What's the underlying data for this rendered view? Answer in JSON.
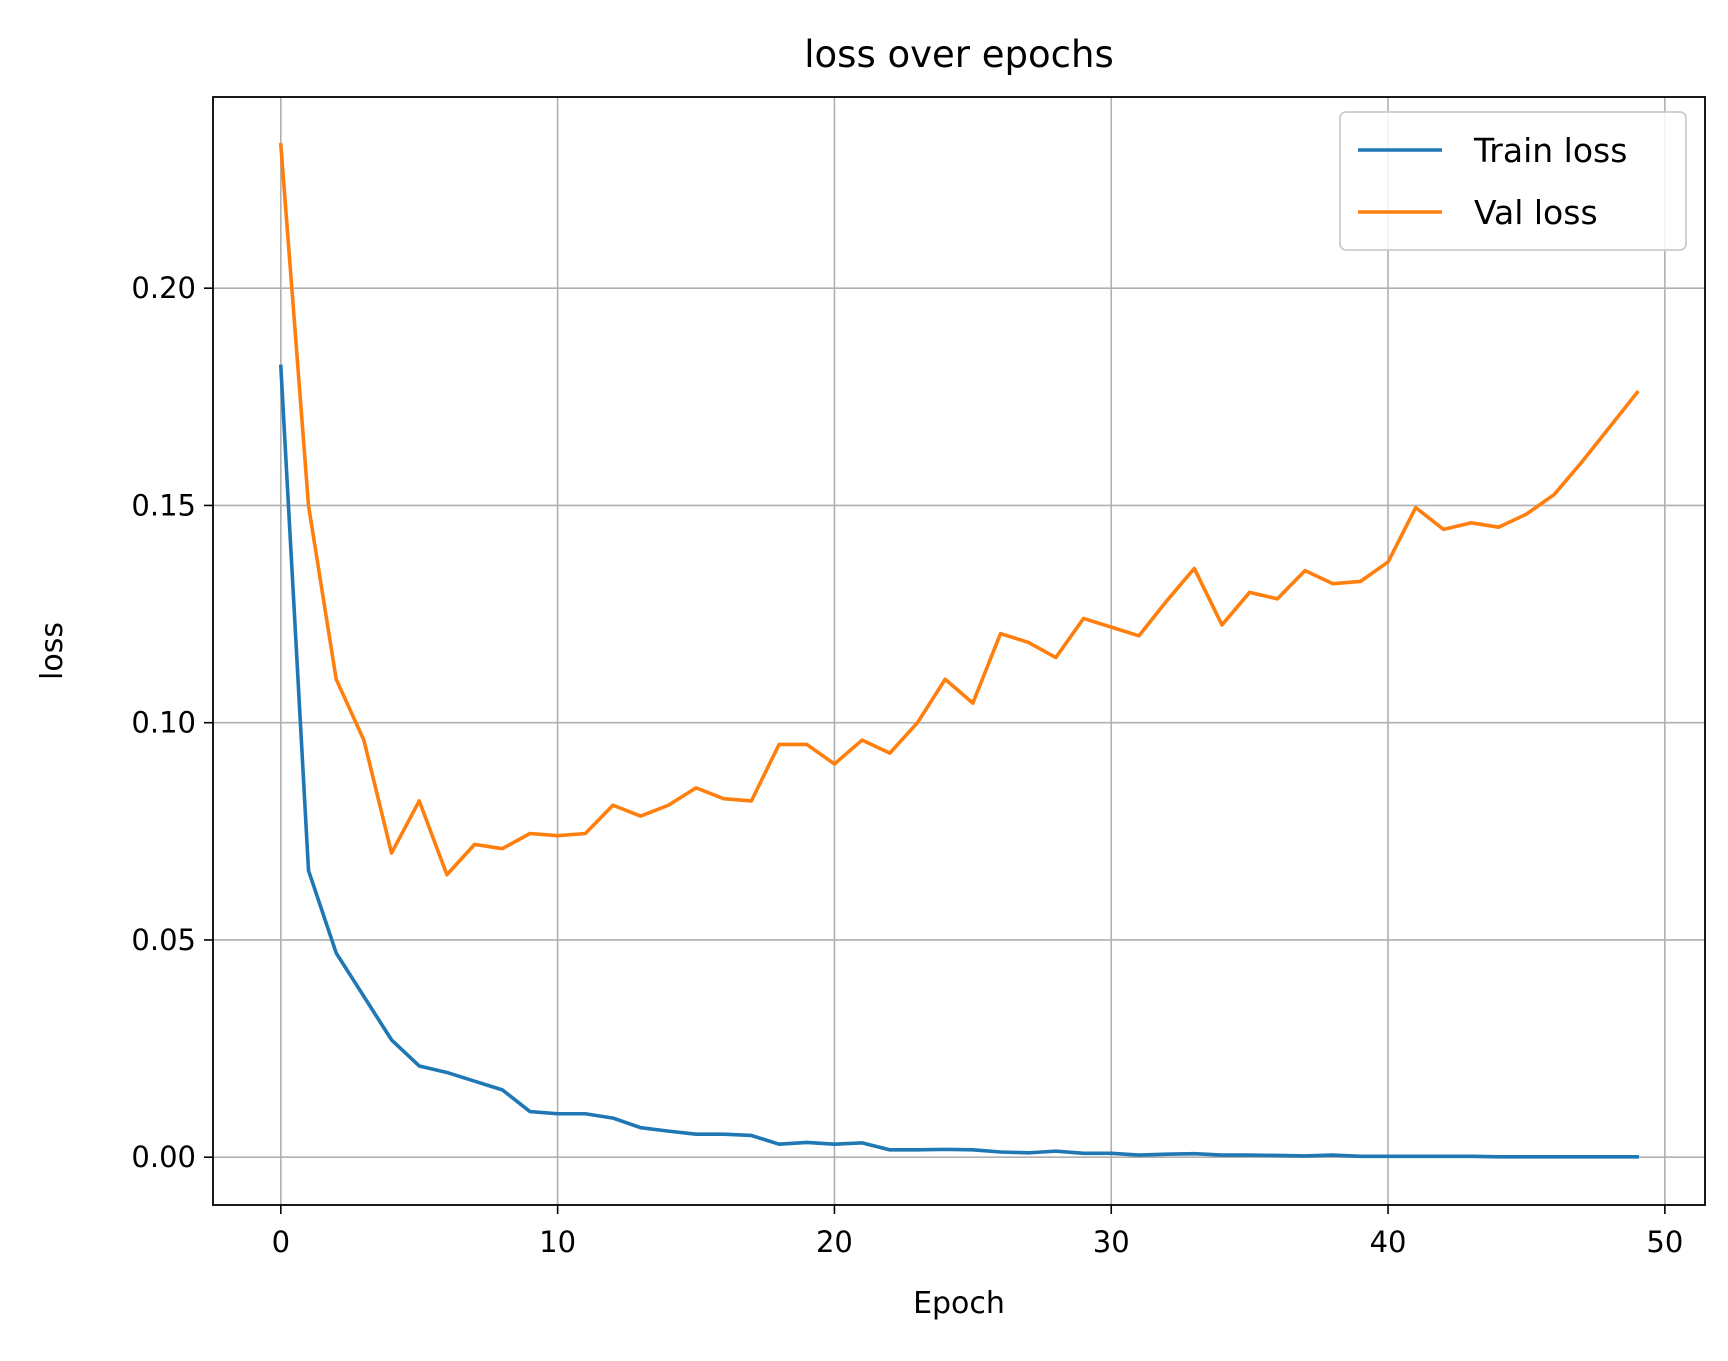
{
  "chart_data": {
    "type": "line",
    "title": "loss over epochs",
    "xlabel": "Epoch",
    "ylabel": "loss",
    "xlim": [
      -2.45,
      51.45
    ],
    "ylim": [
      -0.011,
      0.244
    ],
    "xticks": [
      0,
      10,
      20,
      30,
      40,
      50
    ],
    "xtick_labels": [
      "0",
      "10",
      "20",
      "30",
      "40",
      "50"
    ],
    "yticks": [
      0.0,
      0.05,
      0.1,
      0.15,
      0.2
    ],
    "ytick_labels": [
      "0.00",
      "0.05",
      "0.10",
      "0.15",
      "0.20"
    ],
    "grid": true,
    "legend_position": "top-right",
    "x": [
      0,
      1,
      2,
      3,
      4,
      5,
      6,
      7,
      8,
      9,
      10,
      11,
      12,
      13,
      14,
      15,
      16,
      17,
      18,
      19,
      20,
      21,
      22,
      23,
      24,
      25,
      26,
      27,
      28,
      29,
      30,
      31,
      32,
      33,
      34,
      35,
      36,
      37,
      38,
      39,
      40,
      41,
      42,
      43,
      44,
      45,
      46,
      47,
      48,
      49
    ],
    "series": [
      {
        "name": "Train loss",
        "color": "#1f77b4",
        "values": [
          0.182,
          0.066,
          0.047,
          0.037,
          0.027,
          0.021,
          0.0195,
          0.0175,
          0.0155,
          0.0105,
          0.01,
          0.01,
          0.009,
          0.0068,
          0.006,
          0.0053,
          0.0053,
          0.005,
          0.003,
          0.0034,
          0.003,
          0.0033,
          0.0017,
          0.0017,
          0.0018,
          0.0017,
          0.0012,
          0.001,
          0.0014,
          0.0009,
          0.0009,
          0.0005,
          0.0007,
          0.0008,
          0.0005,
          0.0005,
          0.0004,
          0.0003,
          0.0005,
          0.0002,
          0.0002,
          0.0002,
          0.0002,
          0.0002,
          0.0001,
          0.0001,
          0.0001,
          0.0001,
          0.0001,
          0.0001
        ]
      },
      {
        "name": "Val loss",
        "color": "#ff7f0e",
        "values": [
          0.233,
          0.15,
          0.11,
          0.096,
          0.07,
          0.082,
          0.065,
          0.072,
          0.071,
          0.0745,
          0.074,
          0.0745,
          0.081,
          0.0785,
          0.081,
          0.085,
          0.0825,
          0.082,
          0.095,
          0.095,
          0.0905,
          0.096,
          0.093,
          0.1,
          0.11,
          0.1045,
          0.1205,
          0.1185,
          0.115,
          0.124,
          0.122,
          0.12,
          0.128,
          0.1355,
          0.1225,
          0.13,
          0.1285,
          0.135,
          0.132,
          0.1325,
          0.137,
          0.1495,
          0.1445,
          0.146,
          0.145,
          0.148,
          0.1525,
          0.16,
          0.168,
          0.176
        ]
      }
    ]
  }
}
